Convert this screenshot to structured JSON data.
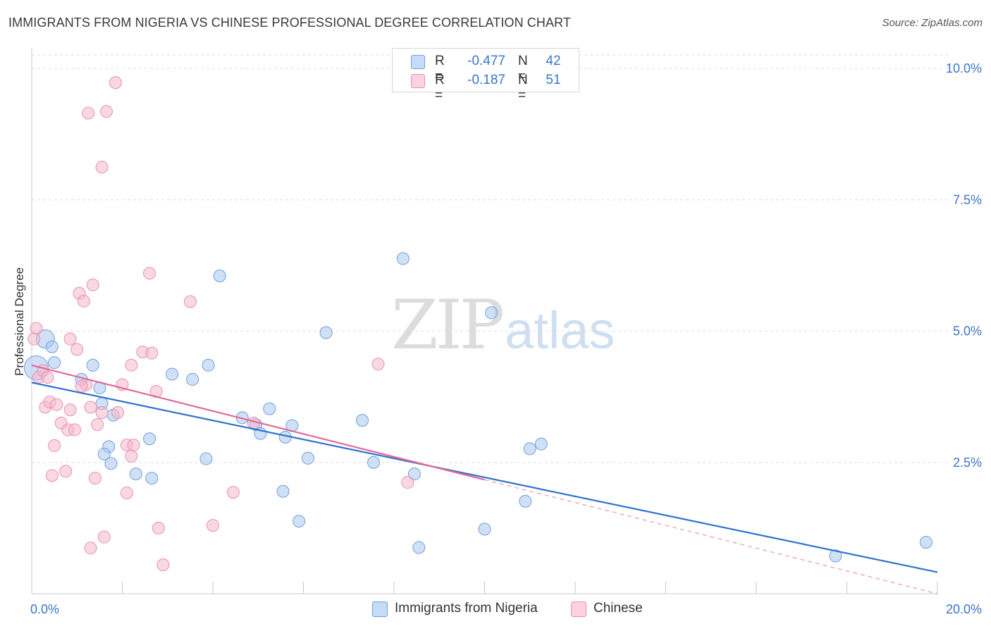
{
  "title": "IMMIGRANTS FROM NIGERIA VS CHINESE PROFESSIONAL DEGREE CORRELATION CHART",
  "source": "Source: ZipAtlas.com",
  "watermark": {
    "zip": "ZIP",
    "atlas": "atlas"
  },
  "legend": {
    "rows": [
      {
        "r_label": "R =",
        "r_value": "-0.477",
        "n_label": "N =",
        "n_value": "42",
        "color": "#a9c8f0"
      },
      {
        "r_label": "R =",
        "r_value": "-0.187",
        "n_label": "N =",
        "n_value": "51",
        "color": "#f6b8cc"
      }
    ]
  },
  "bottom_legend": [
    "Immigrants from Nigeria",
    "Chinese"
  ],
  "chart_data": {
    "type": "scatter",
    "title": "IMMIGRANTS FROM NIGERIA VS CHINESE PROFESSIONAL DEGREE CORRELATION CHART",
    "xlabel": "",
    "ylabel": "Professional Degree",
    "xlim": [
      0,
      20
    ],
    "ylim": [
      0,
      10.5
    ],
    "x_ticks": [
      "0.0%",
      "20.0%"
    ],
    "y_ticks": [
      {
        "value": 2.5,
        "label": "2.5%"
      },
      {
        "value": 5.0,
        "label": "5.0%"
      },
      {
        "value": 7.5,
        "label": "7.5%"
      },
      {
        "value": 10.0,
        "label": "10.0%"
      }
    ],
    "grid": true,
    "legend_position": "bottom",
    "colors": {
      "nigeria_fill": "#a9c8f0",
      "nigeria_stroke": "#6f9fdc",
      "nigeria_line": "#2f72d0",
      "chinese_fill": "#f6b8cc",
      "chinese_stroke": "#e890ad",
      "chinese_line": "#e0699a",
      "axis_label": "#3a74c8",
      "grid": "#dedede"
    },
    "series": [
      {
        "name": "Immigrants from Nigeria",
        "trend": {
          "x0": 0,
          "y0": 4.02,
          "x1": 20,
          "y1": 0.41,
          "dashed_from": null
        },
        "points": [
          {
            "x": 0.1,
            "y": 4.3,
            "size": "big"
          },
          {
            "x": 0.3,
            "y": 4.85,
            "size": "mid"
          },
          {
            "x": 0.45,
            "y": 4.7
          },
          {
            "x": 0.5,
            "y": 4.4
          },
          {
            "x": 1.35,
            "y": 4.35
          },
          {
            "x": 1.1,
            "y": 4.08
          },
          {
            "x": 1.5,
            "y": 3.92
          },
          {
            "x": 1.55,
            "y": 3.62
          },
          {
            "x": 1.8,
            "y": 3.4
          },
          {
            "x": 1.7,
            "y": 2.8
          },
          {
            "x": 1.6,
            "y": 2.66
          },
          {
            "x": 1.75,
            "y": 2.48
          },
          {
            "x": 2.3,
            "y": 2.28
          },
          {
            "x": 2.65,
            "y": 2.2
          },
          {
            "x": 2.6,
            "y": 2.95
          },
          {
            "x": 3.1,
            "y": 4.18
          },
          {
            "x": 3.55,
            "y": 4.08
          },
          {
            "x": 3.9,
            "y": 4.35
          },
          {
            "x": 3.85,
            "y": 2.57
          },
          {
            "x": 4.15,
            "y": 6.05
          },
          {
            "x": 4.65,
            "y": 3.35
          },
          {
            "x": 4.95,
            "y": 3.22
          },
          {
            "x": 5.05,
            "y": 3.05
          },
          {
            "x": 5.25,
            "y": 3.52
          },
          {
            "x": 5.6,
            "y": 2.98
          },
          {
            "x": 5.75,
            "y": 3.2
          },
          {
            "x": 5.55,
            "y": 1.95
          },
          {
            "x": 5.9,
            "y": 1.38
          },
          {
            "x": 6.5,
            "y": 4.97
          },
          {
            "x": 6.1,
            "y": 2.58
          },
          {
            "x": 7.3,
            "y": 3.3
          },
          {
            "x": 7.55,
            "y": 2.5
          },
          {
            "x": 8.2,
            "y": 6.38
          },
          {
            "x": 8.45,
            "y": 2.28
          },
          {
            "x": 8.55,
            "y": 0.88
          },
          {
            "x": 10.15,
            "y": 5.35
          },
          {
            "x": 10.0,
            "y": 1.23
          },
          {
            "x": 10.9,
            "y": 1.76
          },
          {
            "x": 11.0,
            "y": 2.76
          },
          {
            "x": 11.25,
            "y": 2.85
          },
          {
            "x": 17.75,
            "y": 0.72
          },
          {
            "x": 19.75,
            "y": 0.98
          }
        ]
      },
      {
        "name": "Chinese",
        "trend": {
          "x0": 0,
          "y0": 4.35,
          "x1": 10,
          "y1": 2.17,
          "dashed_to_x": 20,
          "dashed_to_y": 0.0
        },
        "points": [
          {
            "x": 0.1,
            "y": 5.05
          },
          {
            "x": 0.05,
            "y": 4.85
          },
          {
            "x": 0.15,
            "y": 4.12
          },
          {
            "x": 0.25,
            "y": 4.25
          },
          {
            "x": 0.35,
            "y": 4.12
          },
          {
            "x": 0.3,
            "y": 3.55
          },
          {
            "x": 0.4,
            "y": 3.65
          },
          {
            "x": 0.55,
            "y": 3.6
          },
          {
            "x": 0.5,
            "y": 2.82
          },
          {
            "x": 0.45,
            "y": 2.25
          },
          {
            "x": 0.75,
            "y": 2.33
          },
          {
            "x": 0.65,
            "y": 3.25
          },
          {
            "x": 0.85,
            "y": 3.5
          },
          {
            "x": 0.8,
            "y": 3.12
          },
          {
            "x": 0.95,
            "y": 3.12
          },
          {
            "x": 0.85,
            "y": 4.85
          },
          {
            "x": 1.0,
            "y": 4.65
          },
          {
            "x": 1.2,
            "y": 3.98
          },
          {
            "x": 1.3,
            "y": 3.55
          },
          {
            "x": 1.55,
            "y": 3.45
          },
          {
            "x": 1.45,
            "y": 3.22
          },
          {
            "x": 1.4,
            "y": 2.2
          },
          {
            "x": 1.3,
            "y": 0.87
          },
          {
            "x": 1.6,
            "y": 1.08
          },
          {
            "x": 1.05,
            "y": 5.72
          },
          {
            "x": 1.15,
            "y": 5.57
          },
          {
            "x": 1.35,
            "y": 5.88
          },
          {
            "x": 1.55,
            "y": 8.12
          },
          {
            "x": 1.25,
            "y": 9.15
          },
          {
            "x": 1.65,
            "y": 9.18
          },
          {
            "x": 1.85,
            "y": 9.73
          },
          {
            "x": 1.9,
            "y": 3.45
          },
          {
            "x": 2.0,
            "y": 3.98
          },
          {
            "x": 2.1,
            "y": 2.83
          },
          {
            "x": 2.2,
            "y": 2.62
          },
          {
            "x": 2.1,
            "y": 1.92
          },
          {
            "x": 2.2,
            "y": 4.35
          },
          {
            "x": 2.45,
            "y": 4.6
          },
          {
            "x": 2.65,
            "y": 4.58
          },
          {
            "x": 2.6,
            "y": 6.1
          },
          {
            "x": 2.75,
            "y": 3.85
          },
          {
            "x": 2.8,
            "y": 1.25
          },
          {
            "x": 2.9,
            "y": 0.55
          },
          {
            "x": 3.5,
            "y": 5.56
          },
          {
            "x": 4.0,
            "y": 1.3
          },
          {
            "x": 4.45,
            "y": 1.93
          },
          {
            "x": 4.9,
            "y": 3.25
          },
          {
            "x": 7.65,
            "y": 4.37
          },
          {
            "x": 8.3,
            "y": 2.12
          },
          {
            "x": 2.25,
            "y": 2.83
          },
          {
            "x": 1.1,
            "y": 3.95
          }
        ]
      }
    ]
  }
}
